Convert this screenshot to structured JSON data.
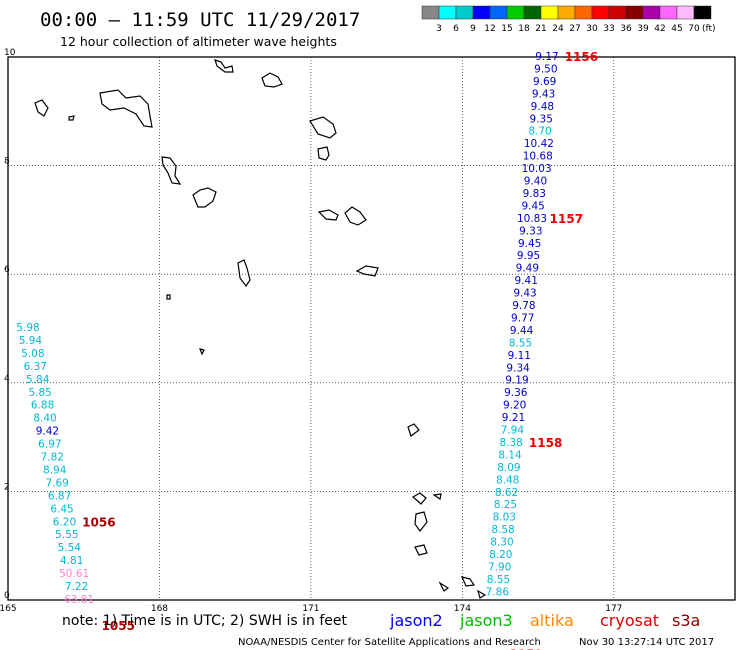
{
  "header": {
    "title": "00:00 – 11:59 UTC 11/29/2017",
    "subtitle": "12 hour collection of altimeter wave heights"
  },
  "color_scale": {
    "colors": [
      "#888888",
      "#00ffff",
      "#00cccc",
      "#0000ff",
      "#0066ff",
      "#00cc00",
      "#006600",
      "#ffff00",
      "#ffaa00",
      "#ff6600",
      "#ff0000",
      "#cc0000",
      "#880000",
      "#aa00aa",
      "#ff66ff",
      "#ffbbff",
      "#000000"
    ],
    "labels": [
      "3",
      "6",
      "9",
      "12",
      "15",
      "18",
      "21",
      "24",
      "27",
      "30",
      "33",
      "36",
      "39",
      "42",
      "45",
      "70"
    ],
    "unit": "(ft)"
  },
  "axes": {
    "lat_labels": [
      "0",
      "2",
      "4",
      "6",
      "8",
      "10"
    ],
    "lon_labels": [
      "165",
      "168",
      "171",
      "174",
      "177"
    ]
  },
  "tracks": [
    {
      "satellite": "jason2",
      "color": "#0000cc",
      "times": [
        {
          "label": "1156",
          "row": 0
        },
        {
          "label": "1157",
          "row": 13
        },
        {
          "label": "1158",
          "row": 31
        },
        {
          "label": "1159",
          "row": 48
        }
      ],
      "points": [
        {
          "value": "9.17",
          "color": "#0000cc"
        },
        {
          "value": "9.50",
          "color": "#0000cc"
        },
        {
          "value": "9.69",
          "color": "#0000cc"
        },
        {
          "value": "9.43",
          "color": "#0000cc"
        },
        {
          "value": "9.48",
          "color": "#0000cc"
        },
        {
          "value": "9.35",
          "color": "#0000cc"
        },
        {
          "value": "8.70",
          "color": "#00b8d8"
        },
        {
          "value": "10.42",
          "color": "#0000cc"
        },
        {
          "value": "10.68",
          "color": "#0000cc"
        },
        {
          "value": "10.03",
          "color": "#0000cc"
        },
        {
          "value": "9.40",
          "color": "#0000cc"
        },
        {
          "value": "9.83",
          "color": "#0000cc"
        },
        {
          "value": "9.45",
          "color": "#0000cc"
        },
        {
          "value": "10.83",
          "color": "#0000cc"
        },
        {
          "value": "9.33",
          "color": "#0000cc"
        },
        {
          "value": "9.45",
          "color": "#0000cc"
        },
        {
          "value": "9.95",
          "color": "#0000cc"
        },
        {
          "value": "9.49",
          "color": "#0000cc"
        },
        {
          "value": "9.41",
          "color": "#0000cc"
        },
        {
          "value": "9.43",
          "color": "#0000cc"
        },
        {
          "value": "9.78",
          "color": "#0000cc"
        },
        {
          "value": "9.77",
          "color": "#0000cc"
        },
        {
          "value": "9.44",
          "color": "#0000cc"
        },
        {
          "value": "8.55",
          "color": "#00b8d8"
        },
        {
          "value": "9.11",
          "color": "#0000cc"
        },
        {
          "value": "9.34",
          "color": "#0000cc"
        },
        {
          "value": "9.19",
          "color": "#0000cc"
        },
        {
          "value": "9.36",
          "color": "#0000cc"
        },
        {
          "value": "9.20",
          "color": "#0000cc"
        },
        {
          "value": "9.21",
          "color": "#0000cc"
        },
        {
          "value": "7.94",
          "color": "#00b8d8"
        },
        {
          "value": "8.38",
          "color": "#00b8d8"
        },
        {
          "value": "8.14",
          "color": "#00b8d8"
        },
        {
          "value": "8.09",
          "color": "#00b8d8"
        },
        {
          "value": "8.48",
          "color": "#00b8d8"
        },
        {
          "value": "8.62",
          "color": "#00b8d8"
        },
        {
          "value": "8.25",
          "color": "#00b8d8"
        },
        {
          "value": "8.03",
          "color": "#00b8d8"
        },
        {
          "value": "8.58",
          "color": "#00b8d8"
        },
        {
          "value": "8.30",
          "color": "#00b8d8"
        },
        {
          "value": "8.20",
          "color": "#00b8d8"
        },
        {
          "value": "7.90",
          "color": "#00b8d8"
        },
        {
          "value": "8.55",
          "color": "#00b8d8"
        },
        {
          "value": "7.86",
          "color": "#00b8d8"
        }
      ]
    },
    {
      "satellite": "jason2",
      "color": "#0000cc",
      "times": [
        {
          "label": "1056",
          "row": 15
        },
        {
          "label": "1055",
          "row": 23
        }
      ],
      "points": [
        {
          "value": "5.98",
          "color": "#00b8d8"
        },
        {
          "value": "5.94",
          "color": "#00b8d8"
        },
        {
          "value": "5.08",
          "color": "#00b8d8"
        },
        {
          "value": "6.37",
          "color": "#00b8d8"
        },
        {
          "value": "5.84",
          "color": "#00b8d8"
        },
        {
          "value": "5.85",
          "color": "#00b8d8"
        },
        {
          "value": "6.88",
          "color": "#00b8d8"
        },
        {
          "value": "8.40",
          "color": "#00b8d8"
        },
        {
          "value": "9.42",
          "color": "#0000cc"
        },
        {
          "value": "6.97",
          "color": "#00b8d8"
        },
        {
          "value": "7.82",
          "color": "#00b8d8"
        },
        {
          "value": "8.94",
          "color": "#00b8d8"
        },
        {
          "value": "7.69",
          "color": "#00b8d8"
        },
        {
          "value": "6.87",
          "color": "#00b8d8"
        },
        {
          "value": "6.45",
          "color": "#00b8d8"
        },
        {
          "value": "6.20",
          "color": "#00b8d8"
        },
        {
          "value": "5.55",
          "color": "#00b8d8"
        },
        {
          "value": "5.54",
          "color": "#00b8d8"
        },
        {
          "value": "4.81",
          "color": "#00b8d8"
        },
        {
          "value": "50.61",
          "color": "#ff88cc"
        },
        {
          "value": "7.22",
          "color": "#00b8d8"
        },
        {
          "value": "63.81",
          "color": "#ff88cc"
        }
      ]
    }
  ],
  "legend": {
    "note": "note: 1) Time is in UTC; 2) SWH is in feet",
    "satellites": [
      {
        "name": "jason2",
        "color": "#0000ff"
      },
      {
        "name": "jason3",
        "color": "#00bb00"
      },
      {
        "name": "altika",
        "color": "#ff8800"
      },
      {
        "name": "cryosat",
        "color": "#dd0000"
      },
      {
        "name": "s3a",
        "color": "#880000"
      }
    ]
  },
  "footer": {
    "credit": "NOAA/NESDIS Center for Satellite Applications and Research",
    "timestamp": "Nov 30 13:27:14 UTC 2017"
  }
}
